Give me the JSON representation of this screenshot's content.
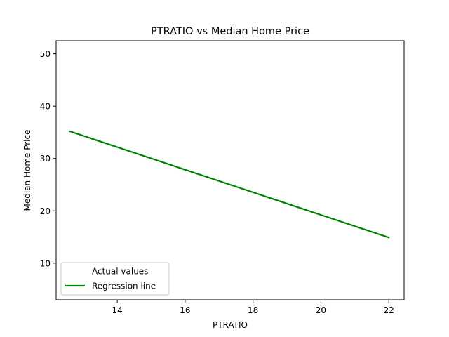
{
  "chart_data": {
    "type": "line",
    "title": "PTRATIO vs Median Home Price",
    "xlabel": "PTRATIO",
    "ylabel": "Median Home Price",
    "xlim": [
      12.2,
      22.45
    ],
    "ylim": [
      3,
      52.5
    ],
    "xticks": [
      14,
      16,
      18,
      20,
      22
    ],
    "yticks": [
      10,
      20,
      30,
      40,
      50
    ],
    "grid": false,
    "legend_position": "lower-left",
    "series": [
      {
        "name": "Actual values",
        "kind": "scatter",
        "color": "#000000",
        "points": []
      },
      {
        "name": "Regression line",
        "kind": "line",
        "color": "#008000",
        "x": [
          12.6,
          22.0
        ],
        "y": [
          35.2,
          14.9
        ]
      }
    ]
  }
}
